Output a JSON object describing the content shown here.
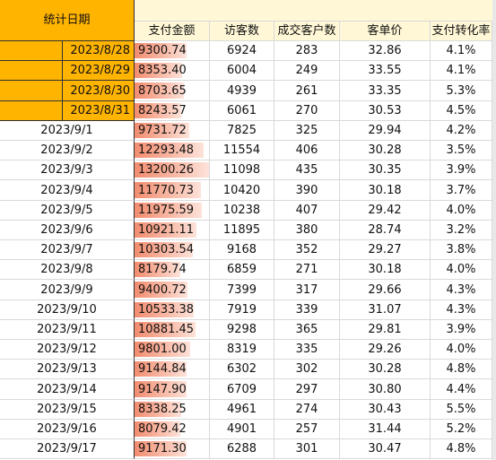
{
  "headers": {
    "date": "统计日期",
    "amount": "支付金额",
    "visitors": "访客数",
    "customers": "成交客户数",
    "avg_order": "客单价",
    "conversion": "支付转化率"
  },
  "colors": {
    "header_bg": "#fff7d6",
    "highlight_date_bg": "#ffb400",
    "bar_color": "#f28c6f"
  },
  "amount_bar_max": 13200.26,
  "rows": [
    {
      "date": "2023/8/28",
      "amount": "9300.74",
      "amount_value": 9300.74,
      "visitors": "6924",
      "customers": "283",
      "avg_order": "32.86",
      "conversion": "4.1%",
      "highlight": true
    },
    {
      "date": "2023/8/29",
      "amount": "8353.40",
      "amount_value": 8353.4,
      "visitors": "6004",
      "customers": "249",
      "avg_order": "33.55",
      "conversion": "4.1%",
      "highlight": true
    },
    {
      "date": "2023/8/30",
      "amount": "8703.65",
      "amount_value": 8703.65,
      "visitors": "4939",
      "customers": "261",
      "avg_order": "33.35",
      "conversion": "5.3%",
      "highlight": true
    },
    {
      "date": "2023/8/31",
      "amount": "8243.57",
      "amount_value": 8243.57,
      "visitors": "6061",
      "customers": "270",
      "avg_order": "30.53",
      "conversion": "4.5%",
      "highlight": true
    },
    {
      "date": "2023/9/1",
      "amount": "9731.72",
      "amount_value": 9731.72,
      "visitors": "7825",
      "customers": "325",
      "avg_order": "29.94",
      "conversion": "4.2%",
      "highlight": false
    },
    {
      "date": "2023/9/2",
      "amount": "12293.48",
      "amount_value": 12293.48,
      "visitors": "11554",
      "customers": "406",
      "avg_order": "30.28",
      "conversion": "3.5%",
      "highlight": false
    },
    {
      "date": "2023/9/3",
      "amount": "13200.26",
      "amount_value": 13200.26,
      "visitors": "11098",
      "customers": "435",
      "avg_order": "30.35",
      "conversion": "3.9%",
      "highlight": false
    },
    {
      "date": "2023/9/4",
      "amount": "11770.73",
      "amount_value": 11770.73,
      "visitors": "10420",
      "customers": "390",
      "avg_order": "30.18",
      "conversion": "3.7%",
      "highlight": false
    },
    {
      "date": "2023/9/5",
      "amount": "11975.59",
      "amount_value": 11975.59,
      "visitors": "10238",
      "customers": "407",
      "avg_order": "29.42",
      "conversion": "4.0%",
      "highlight": false
    },
    {
      "date": "2023/9/6",
      "amount": "10921.11",
      "amount_value": 10921.11,
      "visitors": "11895",
      "customers": "380",
      "avg_order": "28.74",
      "conversion": "3.2%",
      "highlight": false
    },
    {
      "date": "2023/9/7",
      "amount": "10303.54",
      "amount_value": 10303.54,
      "visitors": "9168",
      "customers": "352",
      "avg_order": "29.27",
      "conversion": "3.8%",
      "highlight": false
    },
    {
      "date": "2023/9/8",
      "amount": "8179.74",
      "amount_value": 8179.74,
      "visitors": "6859",
      "customers": "271",
      "avg_order": "30.18",
      "conversion": "4.0%",
      "highlight": false
    },
    {
      "date": "2023/9/9",
      "amount": "9400.72",
      "amount_value": 9400.72,
      "visitors": "7399",
      "customers": "317",
      "avg_order": "29.66",
      "conversion": "4.3%",
      "highlight": false
    },
    {
      "date": "2023/9/10",
      "amount": "10533.38",
      "amount_value": 10533.38,
      "visitors": "7919",
      "customers": "339",
      "avg_order": "31.07",
      "conversion": "4.3%",
      "highlight": false
    },
    {
      "date": "2023/9/11",
      "amount": "10881.45",
      "amount_value": 10881.45,
      "visitors": "9298",
      "customers": "365",
      "avg_order": "29.81",
      "conversion": "3.9%",
      "highlight": false
    },
    {
      "date": "2023/9/12",
      "amount": "9801.00",
      "amount_value": 9801.0,
      "visitors": "8319",
      "customers": "335",
      "avg_order": "29.26",
      "conversion": "4.0%",
      "highlight": false
    },
    {
      "date": "2023/9/13",
      "amount": "9144.84",
      "amount_value": 9144.84,
      "visitors": "6302",
      "customers": "302",
      "avg_order": "30.28",
      "conversion": "4.8%",
      "highlight": false
    },
    {
      "date": "2023/9/14",
      "amount": "9147.90",
      "amount_value": 9147.9,
      "visitors": "6709",
      "customers": "297",
      "avg_order": "30.80",
      "conversion": "4.4%",
      "highlight": false
    },
    {
      "date": "2023/9/15",
      "amount": "8338.25",
      "amount_value": 8338.25,
      "visitors": "4961",
      "customers": "274",
      "avg_order": "30.43",
      "conversion": "5.5%",
      "highlight": false
    },
    {
      "date": "2023/9/16",
      "amount": "8079.42",
      "amount_value": 8079.42,
      "visitors": "4901",
      "customers": "257",
      "avg_order": "31.44",
      "conversion": "5.2%",
      "highlight": false
    },
    {
      "date": "2023/9/17",
      "amount": "9171.30",
      "amount_value": 9171.3,
      "visitors": "6288",
      "customers": "301",
      "avg_order": "30.47",
      "conversion": "4.8%",
      "highlight": false
    }
  ]
}
